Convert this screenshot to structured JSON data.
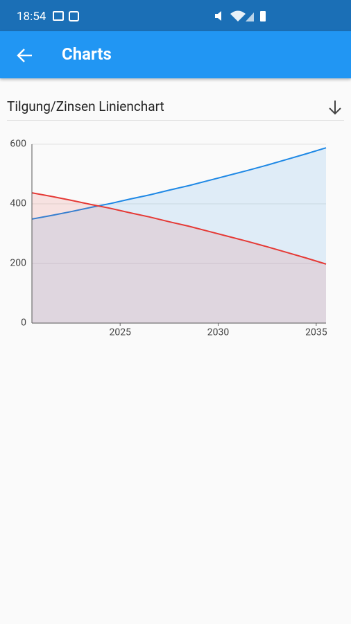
{
  "status_bar": {
    "time": "18:54"
  },
  "app_bar": {
    "title": "Charts"
  },
  "dropdown": {
    "selected": "Tilgung/Zinsen Linienchart"
  },
  "chart_data": {
    "type": "line",
    "x": [
      2020.5,
      2021.5,
      2022.5,
      2023.5,
      2024.5,
      2025.5,
      2026.5,
      2027.5,
      2028.5,
      2029.5,
      2030.5,
      2031.5,
      2032.5,
      2033.5,
      2034.5,
      2035.5
    ],
    "series": [
      {
        "color": "#1e88e5",
        "values": [
          349,
          361,
          374,
          388,
          401,
          416,
          430,
          446,
          461,
          478,
          495,
          512,
          530,
          549,
          568,
          588
        ]
      },
      {
        "color": "#e53935",
        "values": [
          437,
          425,
          412,
          398,
          385,
          370,
          356,
          340,
          325,
          308,
          291,
          274,
          256,
          237,
          218,
          198
        ]
      }
    ],
    "xlim": [
      2020.5,
      2035.5
    ],
    "xticks": [
      2025,
      2030,
      2035
    ],
    "ylim": [
      0,
      600
    ],
    "yticks": [
      0,
      200,
      400,
      600
    ],
    "grid": true,
    "area_fill": true
  }
}
